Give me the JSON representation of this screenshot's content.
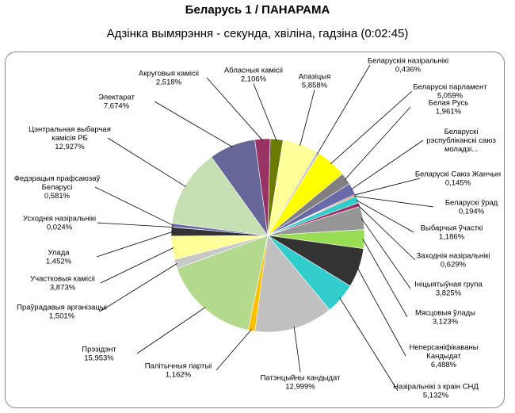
{
  "chart_data": {
    "type": "pie",
    "title": "Беларусь 1 / ПАНАРАМА",
    "subtitle": "Адзінка вымярэння - секунда, хвіліна, гадзіна (0:02:45)",
    "slices": [
      {
        "label": [
          "Абласныя камісіі"
        ],
        "pct": "2,106%",
        "value": 2.106,
        "color": "#6b7a00"
      },
      {
        "label": [
          "Апазіцыя"
        ],
        "pct": "5,858%",
        "value": 5.858,
        "color": "#ffff99"
      },
      {
        "label": [
          "Беларускія назіральнікі"
        ],
        "pct": "0,436%",
        "value": 0.436,
        "color": "#c0c0c0"
      },
      {
        "label": [
          "Беларускі парламент"
        ],
        "pct": "5,059%",
        "value": 5.059,
        "color": "#ffff00"
      },
      {
        "label": [
          "Белая Русь"
        ],
        "pct": "1,961%",
        "value": 1.961,
        "color": "#808080"
      },
      {
        "label": [
          "Беларускі",
          "рэспубліканскі саюз",
          "моладзі..."
        ],
        "pct": "",
        "value": 1.93,
        "color": "#6a6aa8"
      },
      {
        "label": [
          "Беларускі Саюз Жанчын"
        ],
        "pct": "0,145%",
        "value": 0.145,
        "color": "#1f3d8f"
      },
      {
        "label": [
          "Беларускі ўрад"
        ],
        "pct": "0,194%",
        "value": 0.194,
        "color": "#ff6600"
      },
      {
        "label": [
          "Выбарчыя ўчасткі"
        ],
        "pct": "1,186%",
        "value": 1.186,
        "color": "#33cccc"
      },
      {
        "label": [
          "Заходнія назіральнікі"
        ],
        "pct": "0,629%",
        "value": 0.629,
        "color": "#993366"
      },
      {
        "label": [
          "Ініцыятыўная група"
        ],
        "pct": "3,825%",
        "value": 3.825,
        "color": "#969696"
      },
      {
        "label": [
          "Мясцовыя ўлады"
        ],
        "pct": "3,123%",
        "value": 3.123,
        "color": "#99dd55"
      },
      {
        "label": [
          "Неперсаніфікаваны",
          "Кандыдат"
        ],
        "pct": "6,488%",
        "value": 6.488,
        "color": "#333333"
      },
      {
        "label": [
          "Назіральнікі з краін СНД"
        ],
        "pct": "5,132%",
        "value": 5.132,
        "color": "#33cccc"
      },
      {
        "label": [
          "Патэнцыйны кандыдат"
        ],
        "pct": "12,999%",
        "value": 12.999,
        "color": "#c0c0c0"
      },
      {
        "label": [
          "Палітычныя партыі"
        ],
        "pct": "1,162%",
        "value": 1.162,
        "color": "#ffc000"
      },
      {
        "label": [
          "Прэзідэнт"
        ],
        "pct": "15,953%",
        "value": 15.953,
        "color": "#b3d98c"
      },
      {
        "label": [
          "Праўрадавыя арганізацыі"
        ],
        "pct": "1,501%",
        "value": 1.501,
        "color": "#c8c8c8"
      },
      {
        "label": [
          "Участковыя камісіі"
        ],
        "pct": "3,873%",
        "value": 3.873,
        "color": "#ffff99"
      },
      {
        "label": [
          "Улада"
        ],
        "pct": "1,452%",
        "value": 1.452,
        "color": "#333333"
      },
      {
        "label": [
          "Усходнія назіральнікі"
        ],
        "pct": "0,024%",
        "value": 0.024,
        "color": "#ff6600"
      },
      {
        "label": [
          "Федэрацыя прафсаюзаў",
          "Беларусі"
        ],
        "pct": "0,581%",
        "value": 0.581,
        "color": "#6a6aa8"
      },
      {
        "label": [
          "Цэнтральная выбарчая",
          "камісія РБ"
        ],
        "pct": "12,927%",
        "value": 12.927,
        "color": "#c6e0b4"
      },
      {
        "label": [
          "Электарат"
        ],
        "pct": "7,674%",
        "value": 7.674,
        "color": "#666699"
      },
      {
        "label": [
          "Акруговыя камісіі"
        ],
        "pct": "2,518%",
        "value": 2.518,
        "color": "#993366"
      }
    ]
  }
}
